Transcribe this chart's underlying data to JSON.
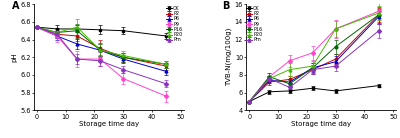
{
  "x": [
    0,
    7,
    14,
    22,
    30,
    45
  ],
  "pH": {
    "CK": [
      6.54,
      6.52,
      6.52,
      6.51,
      6.5,
      6.44
    ],
    "P2": [
      6.54,
      6.46,
      6.44,
      6.3,
      6.2,
      6.1
    ],
    "P6": [
      6.54,
      6.44,
      6.35,
      6.28,
      6.18,
      6.04
    ],
    "P9": [
      6.54,
      6.44,
      6.18,
      6.18,
      5.96,
      5.76
    ],
    "P16": [
      6.54,
      6.48,
      6.5,
      6.28,
      6.2,
      6.12
    ],
    "P20": [
      6.54,
      6.48,
      6.54,
      6.28,
      6.22,
      6.12
    ],
    "Pm": [
      6.54,
      6.46,
      6.18,
      6.16,
      6.06,
      5.9
    ]
  },
  "pH_err": {
    "CK": [
      0.01,
      0.04,
      0.04,
      0.05,
      0.04,
      0.03
    ],
    "P2": [
      0.01,
      0.04,
      0.06,
      0.09,
      0.05,
      0.04
    ],
    "P6": [
      0.01,
      0.04,
      0.06,
      0.07,
      0.05,
      0.04
    ],
    "P9": [
      0.01,
      0.07,
      0.09,
      0.08,
      0.06,
      0.06
    ],
    "P16": [
      0.01,
      0.04,
      0.08,
      0.08,
      0.05,
      0.04
    ],
    "P20": [
      0.01,
      0.05,
      0.09,
      0.07,
      0.05,
      0.04
    ],
    "Pm": [
      0.01,
      0.04,
      0.06,
      0.06,
      0.04,
      0.04
    ]
  },
  "tvbn": {
    "CK": [
      5.0,
      6.1,
      6.2,
      6.5,
      6.2,
      6.8
    ],
    "P2": [
      5.0,
      7.2,
      7.5,
      8.6,
      9.8,
      14.8
    ],
    "P6": [
      5.0,
      7.4,
      7.2,
      8.8,
      9.5,
      14.6
    ],
    "P9": [
      5.0,
      7.8,
      9.6,
      10.5,
      13.2,
      15.2
    ],
    "P16": [
      5.0,
      7.8,
      7.0,
      8.8,
      11.2,
      14.8
    ],
    "P20": [
      5.0,
      7.6,
      8.6,
      9.0,
      13.2,
      15.0
    ],
    "Pm": [
      5.0,
      7.6,
      6.6,
      8.6,
      9.0,
      13.0
    ]
  },
  "tvbn_err": {
    "CK": [
      0.1,
      0.2,
      0.2,
      0.2,
      0.2,
      0.2
    ],
    "P2": [
      0.1,
      0.3,
      0.4,
      0.5,
      0.6,
      0.8
    ],
    "P6": [
      0.1,
      0.3,
      0.4,
      0.5,
      0.6,
      0.8
    ],
    "P9": [
      0.1,
      0.4,
      0.7,
      0.8,
      1.0,
      1.0
    ],
    "P16": [
      0.1,
      0.4,
      0.4,
      0.6,
      0.8,
      0.9
    ],
    "P20": [
      0.1,
      0.3,
      0.7,
      0.6,
      0.9,
      0.8
    ],
    "Pm": [
      0.1,
      0.3,
      0.4,
      0.5,
      0.5,
      0.8
    ]
  },
  "colors": {
    "CK": "#000000",
    "P2": "#cc0000",
    "P6": "#0000cc",
    "P9": "#ff44cc",
    "P16": "#006600",
    "P20": "#44bb00",
    "Pm": "#8833bb"
  },
  "markers": {
    "CK": "s",
    "P2": "s",
    "P6": "^",
    "P9": "D",
    "P16": "o",
    "P20": "^",
    "Pm": "D"
  },
  "pH_ylabel": "pH",
  "tvbn_ylabel": "TVB-N(mg/100g)",
  "xlabel": "Storage time day",
  "pH_ylim": [
    5.6,
    6.8
  ],
  "tvbn_ylim": [
    4,
    16
  ],
  "pH_yticks": [
    5.6,
    5.8,
    6.0,
    6.2,
    6.4,
    6.6,
    6.8
  ],
  "tvbn_yticks": [
    4,
    6,
    8,
    10,
    12,
    14,
    16
  ],
  "xlim": [
    -1,
    51
  ],
  "xticks": [
    0,
    10,
    20,
    30,
    40,
    50
  ],
  "panel_A": "A",
  "panel_B": "B",
  "bg_color": "#ffffff",
  "font_size": 5.0
}
